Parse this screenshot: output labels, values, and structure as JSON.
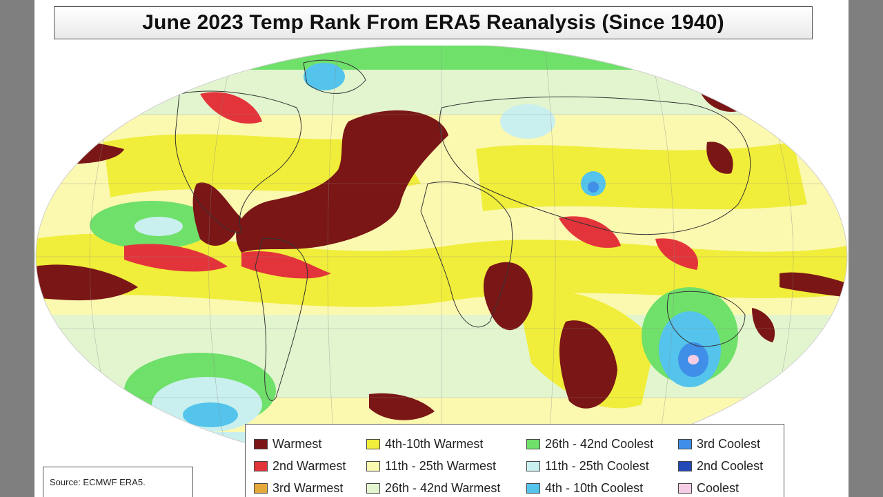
{
  "title": "June 2023 Temp Rank From ERA5 Reanalysis (Since 1940)",
  "source": "Source: ECMWF ERA5.",
  "legend": [
    {
      "label": "Warmest",
      "color": "#7a1616"
    },
    {
      "label": "4th-10th Warmest",
      "color": "#f0ee3a"
    },
    {
      "label": "26th - 42nd Coolest",
      "color": "#6fe06a"
    },
    {
      "label": "3rd Coolest",
      "color": "#3f8ee8"
    },
    {
      "label": "2nd Warmest",
      "color": "#e2343a"
    },
    {
      "label": "11th - 25th Warmest",
      "color": "#fbf8b0"
    },
    {
      "label": "11th - 25th Coolest",
      "color": "#c9f0ee"
    },
    {
      "label": "2nd Coolest",
      "color": "#2448b8"
    },
    {
      "label": "3rd Warmest",
      "color": "#e4a93a"
    },
    {
      "label": "26th - 42nd Warmest",
      "color": "#e2f5cf"
    },
    {
      "label": "4th - 10th Coolest",
      "color": "#54c4ec"
    },
    {
      "label": "Coolest",
      "color": "#f4cde4"
    }
  ]
}
